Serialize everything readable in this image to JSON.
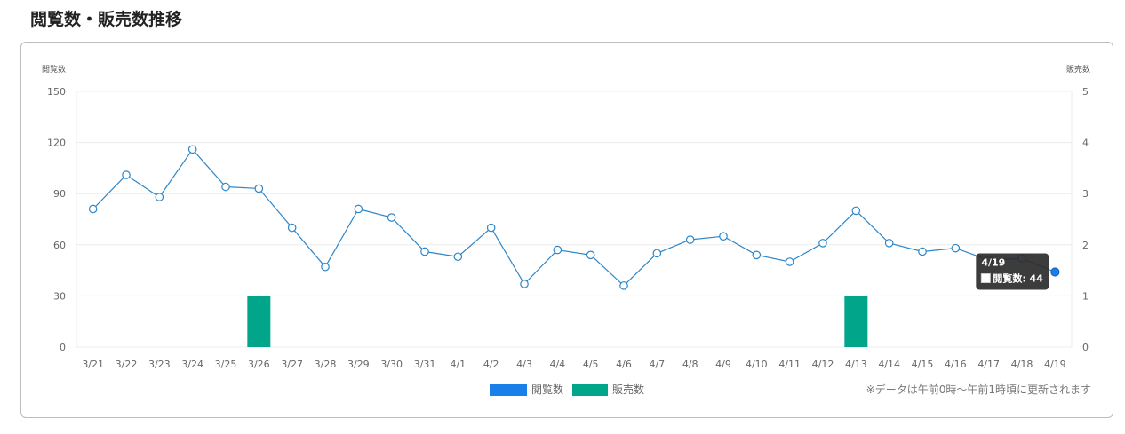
{
  "page": {
    "title": "閲覧数・販売数推移"
  },
  "chart_data": {
    "type": "bar-line",
    "x": [
      "3/21",
      "3/22",
      "3/23",
      "3/24",
      "3/25",
      "3/26",
      "3/27",
      "3/28",
      "3/29",
      "3/30",
      "3/31",
      "4/1",
      "4/2",
      "4/3",
      "4/4",
      "4/5",
      "4/6",
      "4/7",
      "4/8",
      "4/9",
      "4/10",
      "4/11",
      "4/12",
      "4/13",
      "4/14",
      "4/15",
      "4/16",
      "4/17",
      "4/18",
      "4/19"
    ],
    "series": [
      {
        "name": "閲覧数",
        "type": "line",
        "axis": "left",
        "color": "#1a7fe8",
        "values": [
          81,
          101,
          88,
          116,
          94,
          93,
          70,
          47,
          81,
          76,
          56,
          53,
          70,
          37,
          57,
          54,
          36,
          55,
          63,
          65,
          54,
          50,
          61,
          80,
          61,
          56,
          58,
          51,
          52,
          44
        ]
      },
      {
        "name": "販売数",
        "type": "bar",
        "axis": "right",
        "color": "#00a58a",
        "values": [
          0,
          0,
          0,
          0,
          0,
          1,
          0,
          0,
          0,
          0,
          0,
          0,
          0,
          0,
          0,
          0,
          0,
          0,
          0,
          0,
          0,
          0,
          0,
          1,
          0,
          0,
          0,
          0,
          0,
          0
        ]
      }
    ],
    "y_left": {
      "label": "閲覧数",
      "range": [
        0,
        150
      ],
      "ticks": [
        "0",
        "30",
        "60",
        "90",
        "120",
        "150"
      ]
    },
    "y_right": {
      "label": "販売数",
      "range": [
        0,
        5
      ],
      "ticks": [
        "0",
        "1",
        "2",
        "3",
        "4",
        "5"
      ]
    },
    "grid": true,
    "legend": "bottom-center",
    "tooltip": {
      "date": "4/19",
      "text": "閲覧数: 44"
    }
  },
  "note": "※データは午前0時〜午前1時頃に更新されます"
}
